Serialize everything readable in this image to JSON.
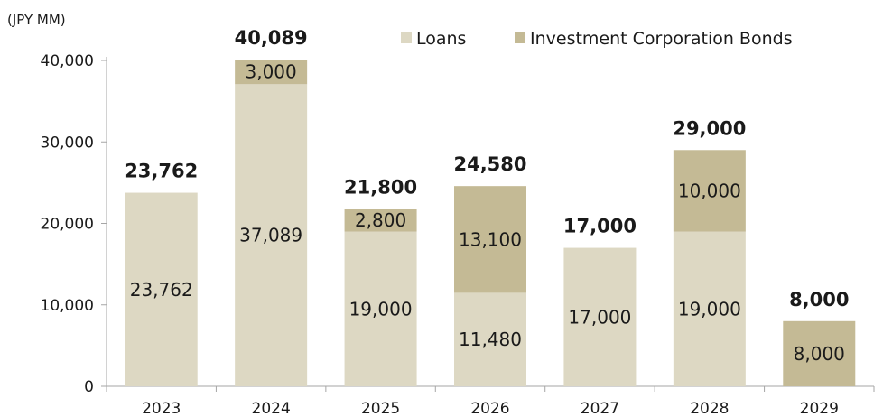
{
  "chart_data": {
    "type": "bar",
    "stacked": true,
    "unit_label": "(JPY MM)",
    "categories": [
      "2023",
      "2024",
      "2025",
      "2026",
      "2027",
      "2028",
      "2029"
    ],
    "series": [
      {
        "name": "Loans",
        "color": "#ddd8c3",
        "values": [
          23762,
          37089,
          19000,
          11480,
          17000,
          19000,
          0
        ],
        "labels": [
          "23,762",
          "37,089",
          "19,000",
          "11,480",
          "17,000",
          "19,000",
          ""
        ]
      },
      {
        "name": "Investment Corporation Bonds",
        "color": "#c4ba95",
        "values": [
          0,
          3000,
          2800,
          13100,
          0,
          10000,
          8000
        ],
        "labels": [
          "",
          "3,000",
          "2,800",
          "13,100",
          "",
          "10,000",
          "8,000"
        ]
      }
    ],
    "totals": [
      23762,
      40089,
      21800,
      24580,
      17000,
      29000,
      8000
    ],
    "total_labels": [
      "23,762",
      "40,089",
      "21,800",
      "24,580",
      "17,000",
      "29,000",
      "8,000"
    ],
    "y_ticks": [
      0,
      10000,
      20000,
      30000,
      40000
    ],
    "y_tick_labels": [
      "0",
      "10,000",
      "20,000",
      "30,000",
      "40,000"
    ],
    "ylim": [
      0,
      40000
    ],
    "grid": false,
    "legend_position": "top-right"
  }
}
